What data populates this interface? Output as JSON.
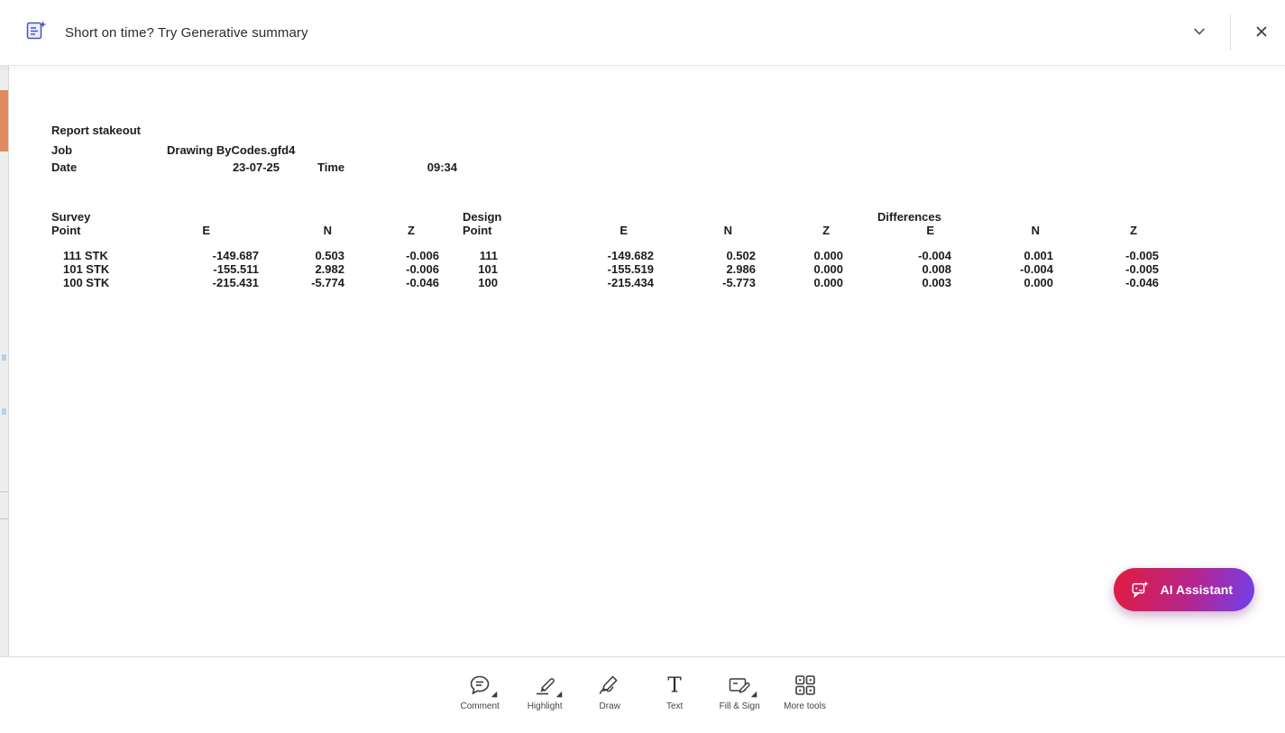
{
  "topbar": {
    "icon": "generative-summary-icon",
    "banner_text": "Short on time? Try Generative summary",
    "controls": {
      "collapse_icon": "chevron-down-icon",
      "close_icon": "close-icon"
    }
  },
  "report": {
    "title": "Report stakeout",
    "fields": {
      "job_label": "Job",
      "job_value": "Drawing ByCodes.gfd4",
      "date_label": "Date",
      "date_value": "23-07-25",
      "time_label": "Time",
      "time_value": "09:34"
    },
    "table": {
      "group_headers": [
        "Survey",
        "Design",
        "Differences"
      ],
      "column_headers": [
        "Point",
        "E",
        "N",
        "Z",
        "Point",
        "E",
        "N",
        "Z",
        "E",
        "N",
        "Z"
      ],
      "rows": [
        [
          "111 STK",
          "-149.687",
          "0.503",
          "-0.006",
          "111",
          "-149.682",
          "0.502",
          "0.000",
          "-0.004",
          "0.001",
          "-0.005"
        ],
        [
          "101 STK",
          "-155.511",
          "2.982",
          "-0.006",
          "101",
          "-155.519",
          "2.986",
          "0.000",
          "0.008",
          "-0.004",
          "-0.005"
        ],
        [
          "100 STK",
          "-215.431",
          "-5.774",
          "-0.046",
          "100",
          "-215.434",
          "-5.773",
          "0.000",
          "0.003",
          "0.000",
          "-0.046"
        ]
      ]
    }
  },
  "ai_assistant": {
    "label": "AI Assistant",
    "icon": "chat-sparkle-icon"
  },
  "toolbar": {
    "tools": [
      {
        "name": "comment",
        "label": "Comment",
        "icon": "comment-icon",
        "has_caret": true
      },
      {
        "name": "highlight",
        "label": "Highlight",
        "icon": "highlight-icon",
        "has_caret": true
      },
      {
        "name": "draw",
        "label": "Draw",
        "icon": "draw-icon",
        "has_caret": false
      },
      {
        "name": "text",
        "label": "Text",
        "icon": "text-icon",
        "has_caret": false
      },
      {
        "name": "fill-sign",
        "label": "Fill & Sign",
        "icon": "fill-sign-icon",
        "has_caret": true
      },
      {
        "name": "more-tools",
        "label": "More tools",
        "icon": "more-tools-icon",
        "has_caret": false
      }
    ]
  },
  "colors": {
    "ai_gradient_start": "#e31c3c",
    "ai_gradient_mid": "#b5258d",
    "ai_gradient_end": "#6f41ee",
    "left_marker_orange": "#e08a5f",
    "banner_icon_blue": "#4853c6"
  }
}
